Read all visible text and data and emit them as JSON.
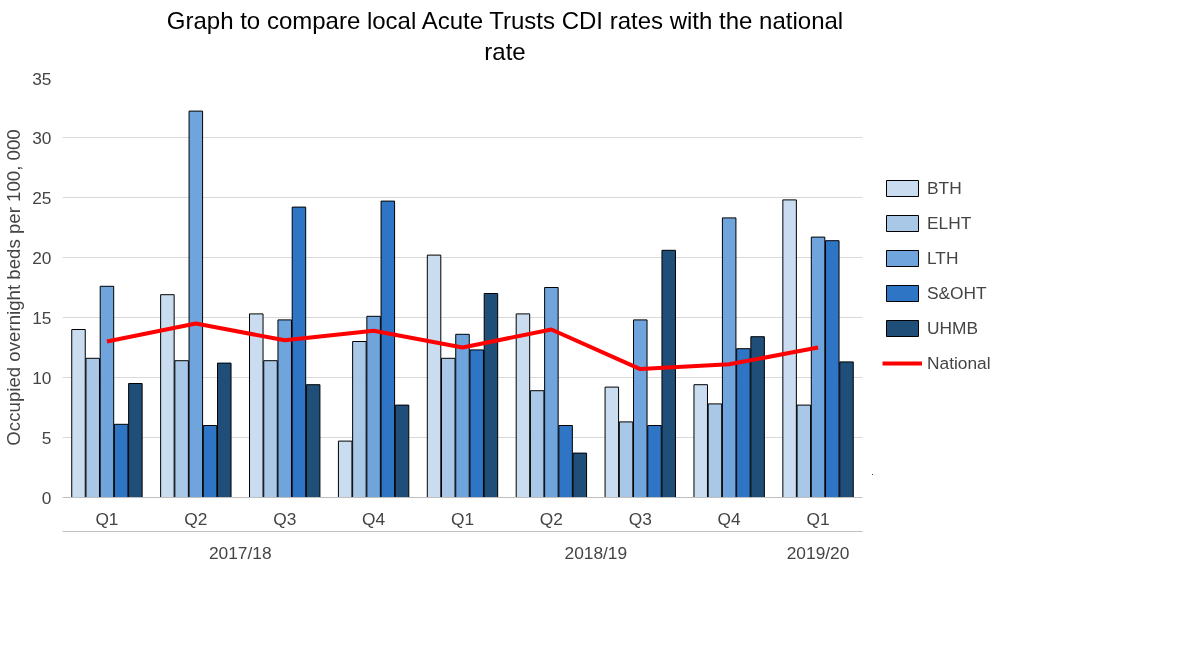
{
  "chart_data": {
    "type": "bar",
    "title": "Graph to compare local Acute Trusts CDI rates with the national rate",
    "ylabel": "Occupied overnight beds per 100, 000",
    "categories": [
      "Q1",
      "Q2",
      "Q3",
      "Q4",
      "Q1",
      "Q2",
      "Q3",
      "Q4",
      "Q1"
    ],
    "annotations": [
      "2017/18",
      "2018/19",
      "2019/20"
    ],
    "series": [
      {
        "name": "BTH",
        "color": "#c9dcf0",
        "values": [
          14.0,
          16.9,
          15.3,
          4.7,
          20.2,
          15.3,
          9.2,
          9.4,
          24.8
        ]
      },
      {
        "name": "ELHT",
        "color": "#a9c8e8",
        "values": [
          11.6,
          11.4,
          11.4,
          13.0,
          11.6,
          8.9,
          6.3,
          7.8,
          7.7
        ]
      },
      {
        "name": "LTH",
        "color": "#6fa4dc",
        "values": [
          17.6,
          32.2,
          14.8,
          15.1,
          13.6,
          17.5,
          14.8,
          23.3,
          21.7
        ]
      },
      {
        "name": "S&OHT",
        "color": "#2e75c6",
        "values": [
          6.1,
          6.0,
          24.2,
          24.7,
          12.3,
          6.0,
          6.0,
          12.4,
          21.4
        ]
      },
      {
        "name": "UHMB",
        "color": "#1f4e79",
        "values": [
          9.5,
          11.2,
          9.4,
          7.7,
          17.0,
          3.7,
          20.6,
          13.4,
          11.3
        ]
      },
      {
        "name": "National",
        "type": "line",
        "color": "#ff0000",
        "values": [
          13.0,
          14.5,
          13.1,
          13.9,
          12.5,
          14.0,
          10.7,
          11.1,
          12.5
        ]
      }
    ],
    "ylim": [
      0,
      35
    ],
    "yticks": [
      0,
      5,
      10,
      15,
      20,
      25,
      30,
      35
    ],
    "grid": "y",
    "legend": "right"
  }
}
